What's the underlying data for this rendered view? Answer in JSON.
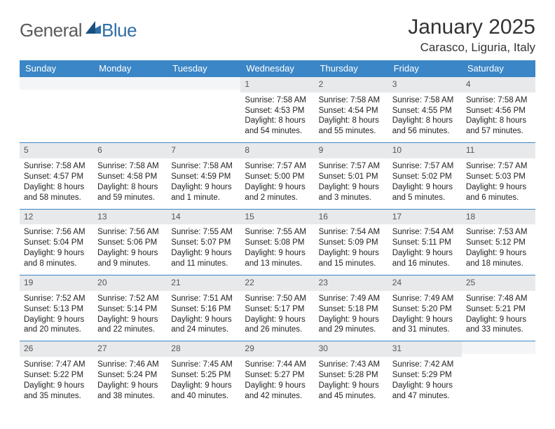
{
  "brand": {
    "part1": "General",
    "part2": "Blue"
  },
  "title": "January 2025",
  "location": "Carasco, Liguria, Italy",
  "style": {
    "header_bg": "#3b86c6",
    "header_text": "#ffffff",
    "daynum_bg": "#e7e9eb",
    "daynum_text": "#555555",
    "row_border": "#3b86c6",
    "title_fontsize": 30,
    "location_fontsize": 17,
    "cell_fontsize": 11.5
  },
  "weekdays": [
    "Sunday",
    "Monday",
    "Tuesday",
    "Wednesday",
    "Thursday",
    "Friday",
    "Saturday"
  ],
  "weeks": [
    [
      {
        "n": "",
        "sr": "",
        "ss": "",
        "dl": ""
      },
      {
        "n": "",
        "sr": "",
        "ss": "",
        "dl": ""
      },
      {
        "n": "",
        "sr": "",
        "ss": "",
        "dl": ""
      },
      {
        "n": "1",
        "sr": "Sunrise: 7:58 AM",
        "ss": "Sunset: 4:53 PM",
        "dl": "Daylight: 8 hours and 54 minutes."
      },
      {
        "n": "2",
        "sr": "Sunrise: 7:58 AM",
        "ss": "Sunset: 4:54 PM",
        "dl": "Daylight: 8 hours and 55 minutes."
      },
      {
        "n": "3",
        "sr": "Sunrise: 7:58 AM",
        "ss": "Sunset: 4:55 PM",
        "dl": "Daylight: 8 hours and 56 minutes."
      },
      {
        "n": "4",
        "sr": "Sunrise: 7:58 AM",
        "ss": "Sunset: 4:56 PM",
        "dl": "Daylight: 8 hours and 57 minutes."
      }
    ],
    [
      {
        "n": "5",
        "sr": "Sunrise: 7:58 AM",
        "ss": "Sunset: 4:57 PM",
        "dl": "Daylight: 8 hours and 58 minutes."
      },
      {
        "n": "6",
        "sr": "Sunrise: 7:58 AM",
        "ss": "Sunset: 4:58 PM",
        "dl": "Daylight: 8 hours and 59 minutes."
      },
      {
        "n": "7",
        "sr": "Sunrise: 7:58 AM",
        "ss": "Sunset: 4:59 PM",
        "dl": "Daylight: 9 hours and 1 minute."
      },
      {
        "n": "8",
        "sr": "Sunrise: 7:57 AM",
        "ss": "Sunset: 5:00 PM",
        "dl": "Daylight: 9 hours and 2 minutes."
      },
      {
        "n": "9",
        "sr": "Sunrise: 7:57 AM",
        "ss": "Sunset: 5:01 PM",
        "dl": "Daylight: 9 hours and 3 minutes."
      },
      {
        "n": "10",
        "sr": "Sunrise: 7:57 AM",
        "ss": "Sunset: 5:02 PM",
        "dl": "Daylight: 9 hours and 5 minutes."
      },
      {
        "n": "11",
        "sr": "Sunrise: 7:57 AM",
        "ss": "Sunset: 5:03 PM",
        "dl": "Daylight: 9 hours and 6 minutes."
      }
    ],
    [
      {
        "n": "12",
        "sr": "Sunrise: 7:56 AM",
        "ss": "Sunset: 5:04 PM",
        "dl": "Daylight: 9 hours and 8 minutes."
      },
      {
        "n": "13",
        "sr": "Sunrise: 7:56 AM",
        "ss": "Sunset: 5:06 PM",
        "dl": "Daylight: 9 hours and 9 minutes."
      },
      {
        "n": "14",
        "sr": "Sunrise: 7:55 AM",
        "ss": "Sunset: 5:07 PM",
        "dl": "Daylight: 9 hours and 11 minutes."
      },
      {
        "n": "15",
        "sr": "Sunrise: 7:55 AM",
        "ss": "Sunset: 5:08 PM",
        "dl": "Daylight: 9 hours and 13 minutes."
      },
      {
        "n": "16",
        "sr": "Sunrise: 7:54 AM",
        "ss": "Sunset: 5:09 PM",
        "dl": "Daylight: 9 hours and 15 minutes."
      },
      {
        "n": "17",
        "sr": "Sunrise: 7:54 AM",
        "ss": "Sunset: 5:11 PM",
        "dl": "Daylight: 9 hours and 16 minutes."
      },
      {
        "n": "18",
        "sr": "Sunrise: 7:53 AM",
        "ss": "Sunset: 5:12 PM",
        "dl": "Daylight: 9 hours and 18 minutes."
      }
    ],
    [
      {
        "n": "19",
        "sr": "Sunrise: 7:52 AM",
        "ss": "Sunset: 5:13 PM",
        "dl": "Daylight: 9 hours and 20 minutes."
      },
      {
        "n": "20",
        "sr": "Sunrise: 7:52 AM",
        "ss": "Sunset: 5:14 PM",
        "dl": "Daylight: 9 hours and 22 minutes."
      },
      {
        "n": "21",
        "sr": "Sunrise: 7:51 AM",
        "ss": "Sunset: 5:16 PM",
        "dl": "Daylight: 9 hours and 24 minutes."
      },
      {
        "n": "22",
        "sr": "Sunrise: 7:50 AM",
        "ss": "Sunset: 5:17 PM",
        "dl": "Daylight: 9 hours and 26 minutes."
      },
      {
        "n": "23",
        "sr": "Sunrise: 7:49 AM",
        "ss": "Sunset: 5:18 PM",
        "dl": "Daylight: 9 hours and 29 minutes."
      },
      {
        "n": "24",
        "sr": "Sunrise: 7:49 AM",
        "ss": "Sunset: 5:20 PM",
        "dl": "Daylight: 9 hours and 31 minutes."
      },
      {
        "n": "25",
        "sr": "Sunrise: 7:48 AM",
        "ss": "Sunset: 5:21 PM",
        "dl": "Daylight: 9 hours and 33 minutes."
      }
    ],
    [
      {
        "n": "26",
        "sr": "Sunrise: 7:47 AM",
        "ss": "Sunset: 5:22 PM",
        "dl": "Daylight: 9 hours and 35 minutes."
      },
      {
        "n": "27",
        "sr": "Sunrise: 7:46 AM",
        "ss": "Sunset: 5:24 PM",
        "dl": "Daylight: 9 hours and 38 minutes."
      },
      {
        "n": "28",
        "sr": "Sunrise: 7:45 AM",
        "ss": "Sunset: 5:25 PM",
        "dl": "Daylight: 9 hours and 40 minutes."
      },
      {
        "n": "29",
        "sr": "Sunrise: 7:44 AM",
        "ss": "Sunset: 5:27 PM",
        "dl": "Daylight: 9 hours and 42 minutes."
      },
      {
        "n": "30",
        "sr": "Sunrise: 7:43 AM",
        "ss": "Sunset: 5:28 PM",
        "dl": "Daylight: 9 hours and 45 minutes."
      },
      {
        "n": "31",
        "sr": "Sunrise: 7:42 AM",
        "ss": "Sunset: 5:29 PM",
        "dl": "Daylight: 9 hours and 47 minutes."
      },
      {
        "n": "",
        "sr": "",
        "ss": "",
        "dl": ""
      }
    ]
  ]
}
